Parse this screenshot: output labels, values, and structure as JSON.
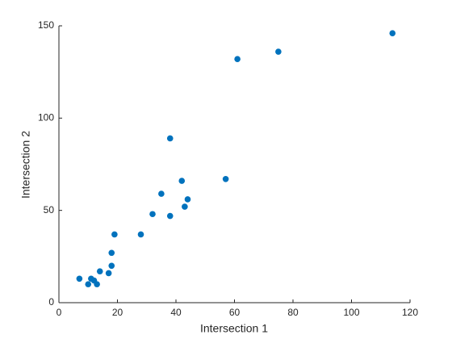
{
  "chart_data": {
    "type": "scatter",
    "xlabel": "Intersection 1",
    "ylabel": "Intersection 2",
    "x": [
      7,
      10,
      11,
      12,
      13,
      14,
      17,
      18,
      18,
      19,
      28,
      32,
      35,
      38,
      38,
      42,
      43,
      44,
      57,
      61,
      75,
      114
    ],
    "values": [
      13,
      10,
      13,
      12,
      10,
      17,
      16,
      20,
      27,
      37,
      37,
      48,
      59,
      47,
      89,
      66,
      52,
      56,
      67,
      132,
      136,
      146
    ],
    "color": "#0072bd",
    "xlim": [
      0,
      120
    ],
    "xticks": [
      0,
      20,
      40,
      60,
      80,
      100,
      120
    ],
    "ylim": [
      0,
      150
    ],
    "yticks": [
      0,
      50,
      100,
      150
    ],
    "grid": false
  }
}
